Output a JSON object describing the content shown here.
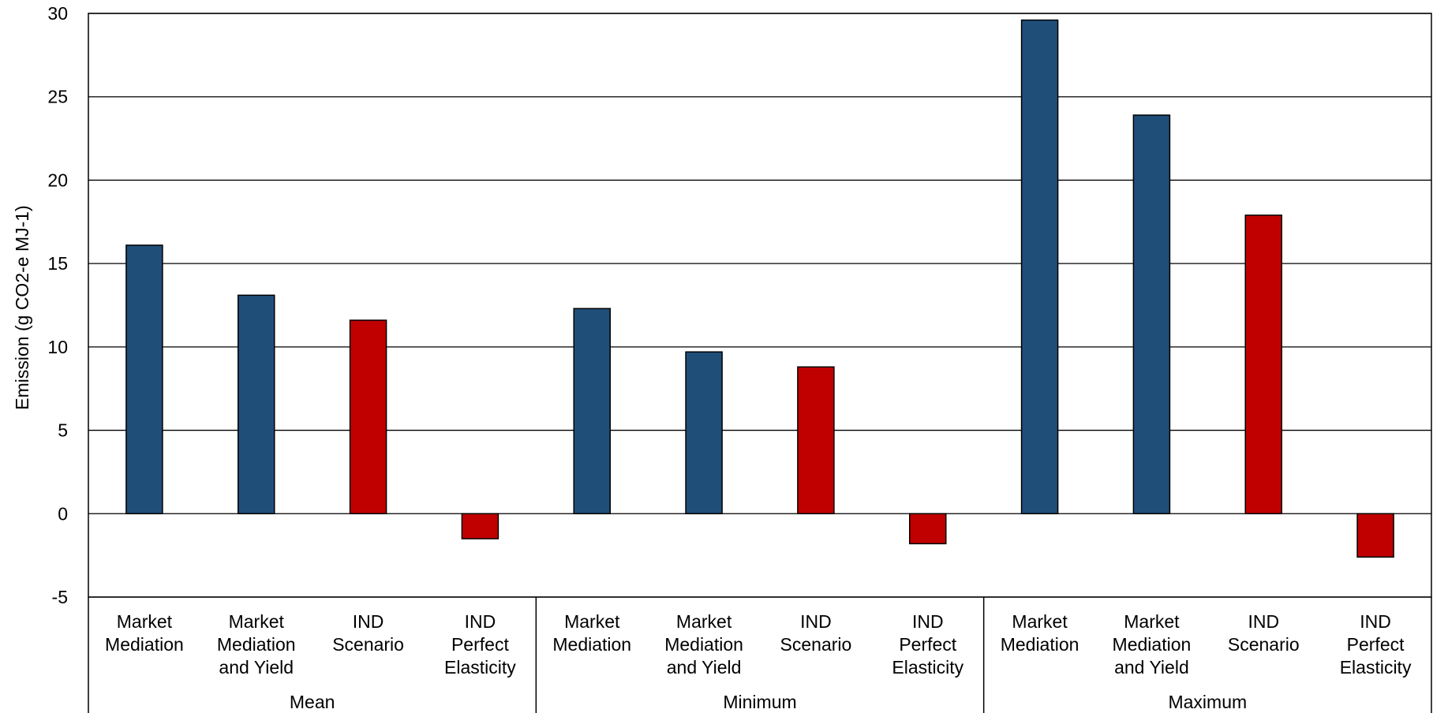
{
  "chart_data": {
    "type": "bar",
    "ylabel": "Emission (g CO2-e MJ-1)",
    "xlabel": "",
    "ylim": [
      -5,
      30
    ],
    "yticks": [
      -5,
      0,
      5,
      10,
      15,
      20,
      25,
      30
    ],
    "grid": true,
    "legend": "none",
    "groups": [
      {
        "label": "Mean",
        "bars": [
          {
            "label": [
              "Market",
              "Mediation"
            ],
            "value": 16.1,
            "color": "#1f4e79"
          },
          {
            "label": [
              "Market",
              "Mediation",
              "and Yield"
            ],
            "value": 13.1,
            "color": "#1f4e79"
          },
          {
            "label": [
              "IND",
              "Scenario"
            ],
            "value": 11.6,
            "color": "#c00000"
          },
          {
            "label": [
              "IND",
              "Perfect",
              "Elasticity"
            ],
            "value": -1.5,
            "color": "#c00000"
          }
        ]
      },
      {
        "label": "Minimum",
        "bars": [
          {
            "label": [
              "Market",
              "Mediation"
            ],
            "value": 12.3,
            "color": "#1f4e79"
          },
          {
            "label": [
              "Market",
              "Mediation",
              "and Yield"
            ],
            "value": 9.7,
            "color": "#1f4e79"
          },
          {
            "label": [
              "IND",
              "Scenario"
            ],
            "value": 8.8,
            "color": "#c00000"
          },
          {
            "label": [
              "IND",
              "Perfect",
              "Elasticity"
            ],
            "value": -1.8,
            "color": "#c00000"
          }
        ]
      },
      {
        "label": "Maximum",
        "bars": [
          {
            "label": [
              "Market",
              "Mediation"
            ],
            "value": 29.6,
            "color": "#1f4e79"
          },
          {
            "label": [
              "Market",
              "Mediation",
              "and Yield"
            ],
            "value": 23.9,
            "color": "#1f4e79"
          },
          {
            "label": [
              "IND",
              "Scenario"
            ],
            "value": 17.9,
            "color": "#c00000"
          },
          {
            "label": [
              "IND",
              "Perfect",
              "Elasticity"
            ],
            "value": -2.6,
            "color": "#c00000"
          }
        ]
      }
    ]
  }
}
